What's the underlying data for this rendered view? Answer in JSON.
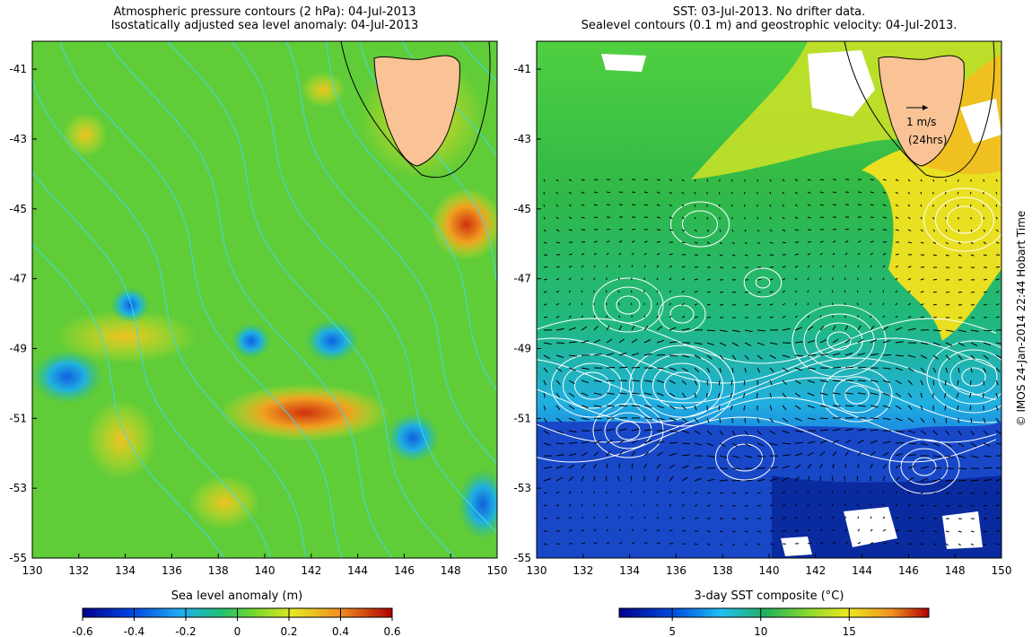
{
  "left_panel": {
    "title_line1": "Atmospheric pressure contours (2 hPa): 04-Jul-2013",
    "title_line2": "Isostatically adjusted sea level anomaly: 04-Jul-2013",
    "colorbar_label": "Sea level anomaly (m)",
    "colorbar_ticks": [
      "-0.6",
      "-0.4",
      "-0.2",
      "0",
      "0.2",
      "0.4",
      "0.6"
    ],
    "colorbar_range": [
      -0.6,
      0.6
    ],
    "contour_color": "#40d8e8"
  },
  "right_panel": {
    "title_line1": "SST: 03-Jul-2013. No drifter data.",
    "title_line2": "Sealevel contours (0.1 m) and geostrophic velocity: 04-Jul-2013.",
    "colorbar_label": "3-day SST composite (°C)",
    "colorbar_ticks": [
      "5",
      "10",
      "15"
    ],
    "colorbar_range": [
      2,
      19.5
    ],
    "velocity_scale_label": "1 m/s",
    "velocity_scale_sub": "(24hrs)",
    "contour_color": "#ffffff"
  },
  "axes": {
    "x_ticks": [
      "130",
      "132",
      "134",
      "136",
      "138",
      "140",
      "142",
      "144",
      "146",
      "148",
      "150"
    ],
    "y_ticks": [
      "-41",
      "-43",
      "-45",
      "-47",
      "-49",
      "-51",
      "-53",
      "-55"
    ],
    "lon_range": [
      130,
      150
    ],
    "lat_range": [
      -55,
      -40.2
    ]
  },
  "side_note": "© IMOS 24-Jan-2014 22:44 Hobart Time",
  "land_color": "#f9c396",
  "ocean_colors": {
    "sla_base": "#58d040",
    "sst_cold": "#1a4fd0",
    "sst_mid": "#22b060",
    "sst_warm": "#e8e020"
  }
}
